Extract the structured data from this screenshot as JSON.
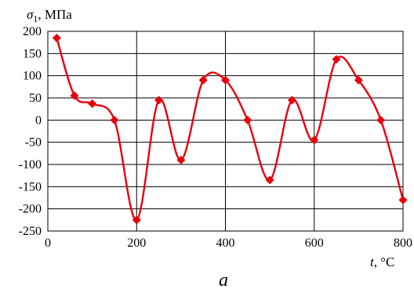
{
  "chart_data": {
    "type": "line",
    "ylabel": {
      "symbol": "σ",
      "sub": "1",
      "rest": ", МПа"
    },
    "xlabel": {
      "symbol": "t",
      "rest": ", °C"
    },
    "panel_label": "a",
    "xlim": [
      0,
      800
    ],
    "ylim": [
      -250,
      200
    ],
    "xticks": [
      0,
      200,
      400,
      600,
      800
    ],
    "yticks": [
      200,
      150,
      100,
      50,
      0,
      -50,
      -100,
      -150,
      -200,
      -250
    ],
    "grid": true,
    "legend": "none",
    "series": [
      {
        "color": "#e8000b",
        "marker": "diamond",
        "smooth": true,
        "x": [
          20,
          60,
          100,
          150,
          200,
          250,
          300,
          350,
          400,
          450,
          500,
          550,
          600,
          650,
          700,
          750,
          800
        ],
        "y": [
          185,
          55,
          37,
          0,
          -225,
          45,
          -90,
          90,
          90,
          0,
          -135,
          45,
          -45,
          137,
          90,
          0,
          -180
        ]
      }
    ]
  }
}
